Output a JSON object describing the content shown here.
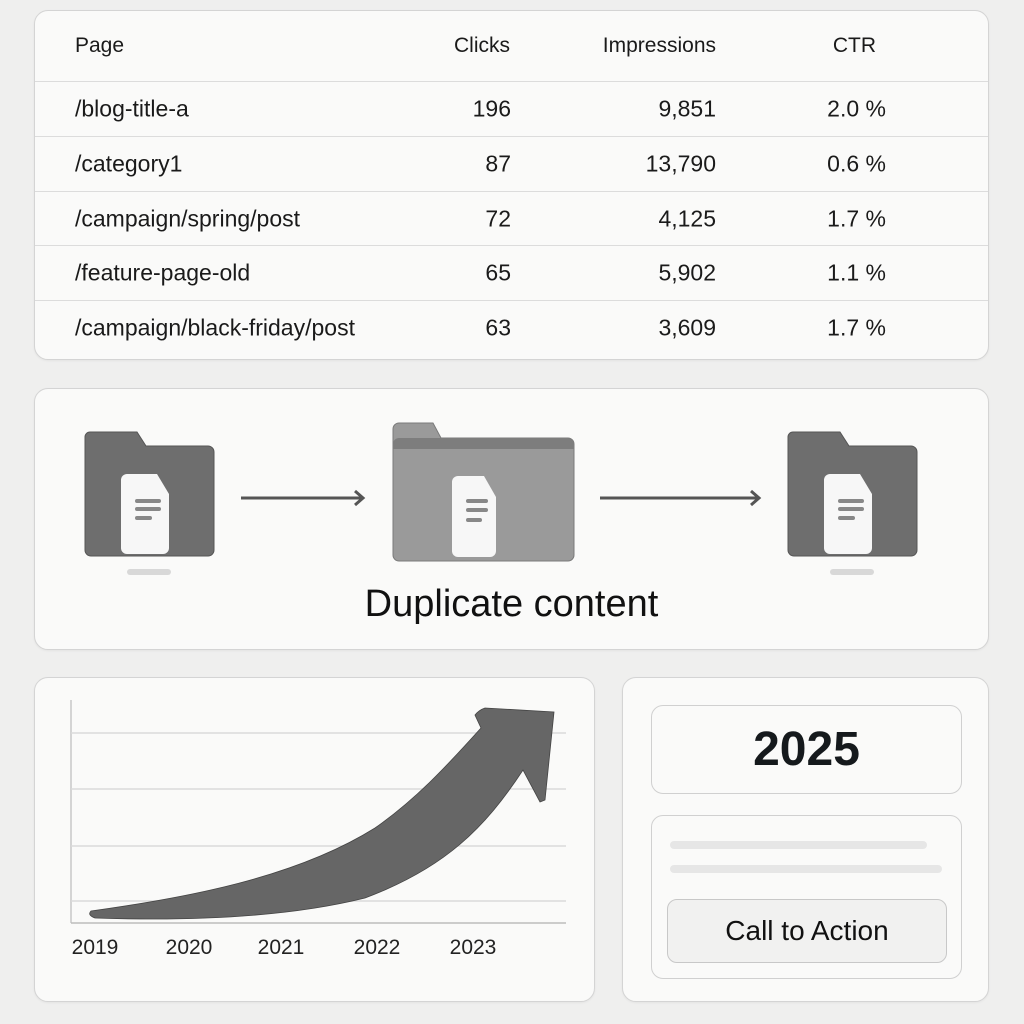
{
  "table": {
    "headers": {
      "page": "Page",
      "clicks": "Clicks",
      "impressions": "Impressions",
      "ctr": "CTR"
    },
    "rows": [
      {
        "page": "/blog-title-a",
        "clicks": "196",
        "impressions": "9,851",
        "ctr": "2.0 %"
      },
      {
        "page": "/category1",
        "clicks": "87",
        "impressions": "13,790",
        "ctr": "0.6 %"
      },
      {
        "page": "/campaign/spring/post",
        "clicks": "72",
        "impressions": "4,125",
        "ctr": "1.7 %"
      },
      {
        "page": "/feature-page-old",
        "clicks": "65",
        "impressions": "5,902",
        "ctr": "1.1 %"
      },
      {
        "page": "/campaign/black-friday/post",
        "clicks": "63",
        "impressions": "3,609",
        "ctr": "1.7 %"
      }
    ]
  },
  "diagram": {
    "title": "Duplicate content",
    "icons": [
      "folder-document-icon",
      "arrow-right-icon",
      "folder-document-icon",
      "arrow-right-icon",
      "folder-document-icon"
    ],
    "colors": {
      "folder_dark": "#6e6e6e",
      "folder_mid": "#9a9a9a",
      "document": "#f7f7f7"
    }
  },
  "trend_chart": {
    "x_ticks": [
      "2019",
      "2020",
      "2021",
      "2022",
      "2023"
    ],
    "trend": "rising",
    "grid": true,
    "arrow_color": "#666666"
  },
  "side_panel": {
    "year": "2025",
    "cta_label": "Call to Action"
  }
}
